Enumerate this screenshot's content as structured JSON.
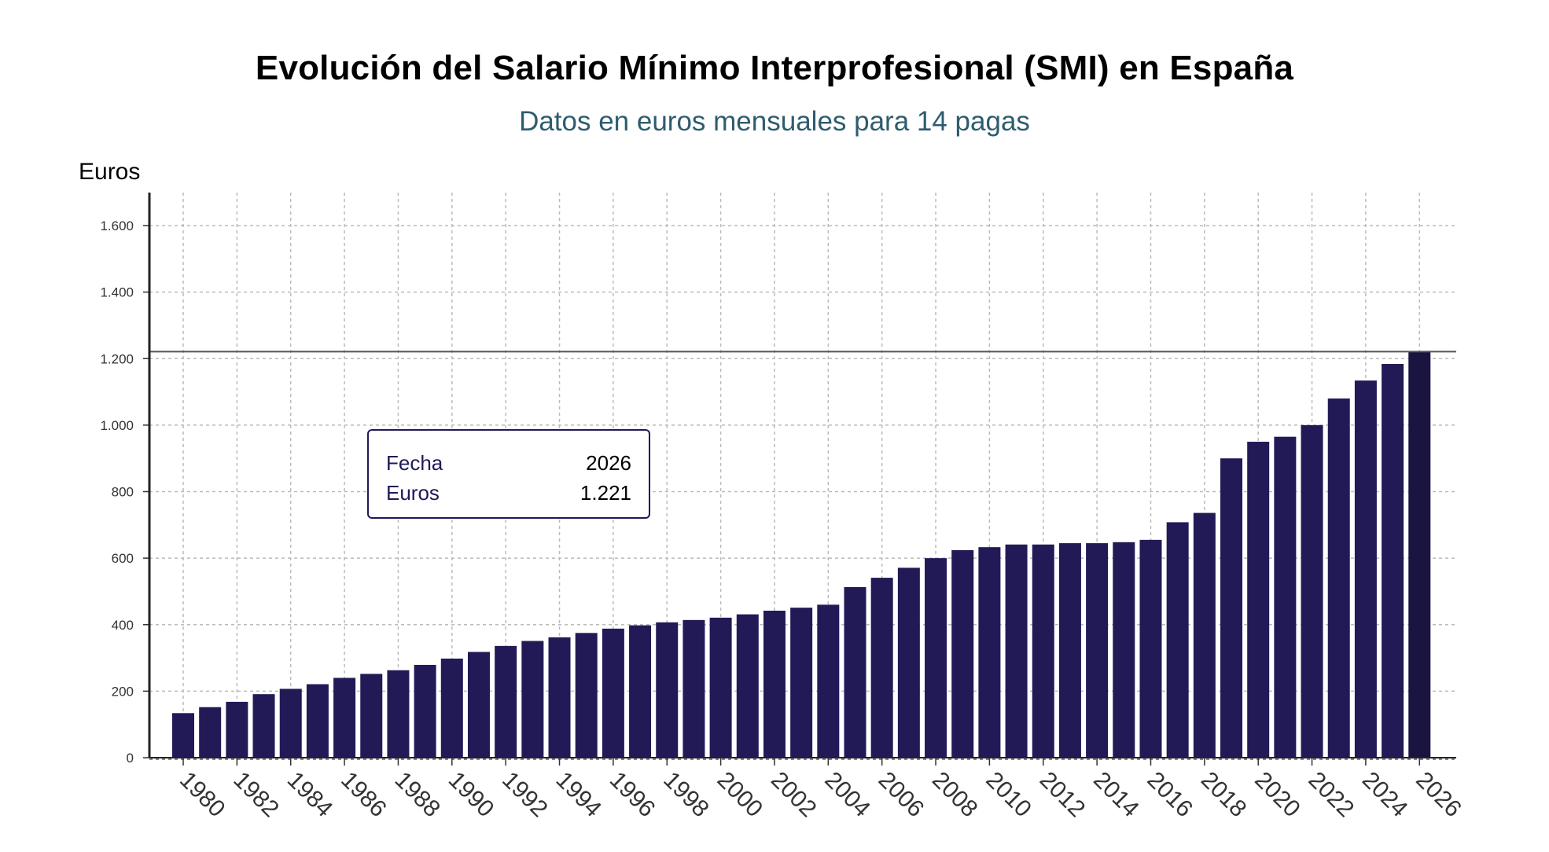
{
  "title": "Evolución del Salario Mínimo Interprofesional (SMI) en España",
  "subtitle": "Datos en euros mensuales para 14 pagas",
  "tooltip": {
    "label_date": "Fecha",
    "value_date": "2026",
    "label_euros": "Euros",
    "value_euros": "1.221"
  },
  "colors": {
    "bar": "#221a56",
    "bar_highlight": "#1a1440",
    "reference_line": "#555555",
    "grid": "#bbbbbb"
  },
  "chart_data": {
    "type": "bar",
    "ylabel": "Euros",
    "ylim": [
      0,
      1700
    ],
    "yticks": [
      0,
      200,
      400,
      600,
      800,
      1000,
      1200,
      1400,
      1600
    ],
    "ytick_labels": [
      "0",
      "200",
      "400",
      "600",
      "800",
      "1.000",
      "1.200",
      "1.400",
      "1.600"
    ],
    "xtick_labels": [
      "1980",
      "1982",
      "1984",
      "1986",
      "1988",
      "1990",
      "1992",
      "1994",
      "1996",
      "1998",
      "2000",
      "2002",
      "2004",
      "2006",
      "2008",
      "2010",
      "2012",
      "2014",
      "2016",
      "2018",
      "2020",
      "2022",
      "2024",
      "2026"
    ],
    "grid": true,
    "reference_value": 1221,
    "highlighted_category": "2026",
    "categories": [
      "1980",
      "1981",
      "1982",
      "1983",
      "1984",
      "1985",
      "1986",
      "1987",
      "1988",
      "1989",
      "1990",
      "1991",
      "1992",
      "1993",
      "1994",
      "1995",
      "1996",
      "1997",
      "1998",
      "1999",
      "2000",
      "2001",
      "2002",
      "2003",
      "2004",
      "2005",
      "2006",
      "2007",
      "2008",
      "2009",
      "2010",
      "2011",
      "2012",
      "2013",
      "2014",
      "2015",
      "2016",
      "2017",
      "2018",
      "2019",
      "2020",
      "2021",
      "2022",
      "2023",
      "2024",
      "2025",
      "2026"
    ],
    "values": [
      134,
      152,
      168,
      191,
      207,
      221,
      240,
      252,
      263,
      279,
      298,
      318,
      336,
      351,
      362,
      375,
      388,
      398,
      407,
      414,
      421,
      431,
      442,
      451,
      460,
      513,
      541,
      571,
      600,
      624,
      633,
      641,
      641,
      645,
      645,
      648,
      655,
      708,
      736,
      900,
      950,
      965,
      1000,
      1080,
      1134,
      1184,
      1221
    ]
  }
}
